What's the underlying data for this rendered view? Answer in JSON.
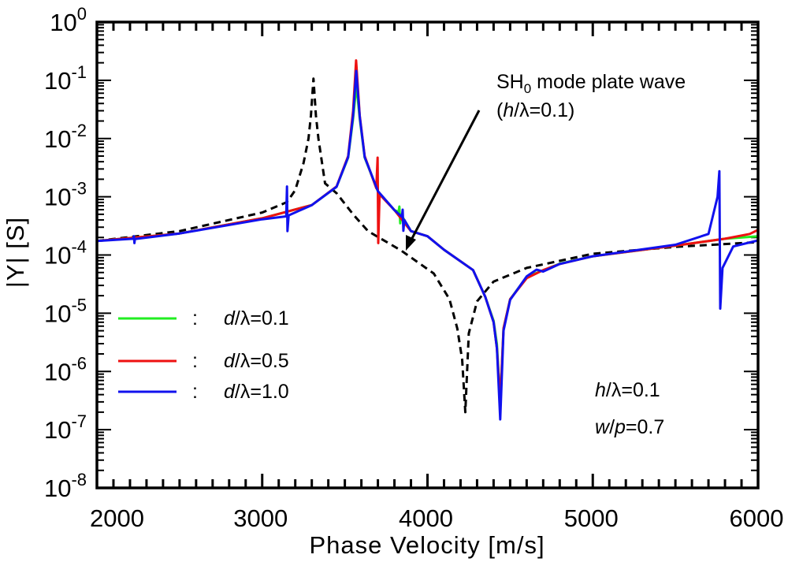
{
  "chart_data": {
    "type": "line",
    "title": "",
    "xlabel": "Phase Velocity [m/s]",
    "ylabel": "|Y| [S]",
    "xlim": [
      2000,
      6000
    ],
    "ylim": [
      1e-08,
      1
    ],
    "yscale": "log",
    "grid": false,
    "legend_placement": "left-middle",
    "x_ticks": [
      "2000",
      "3000",
      "4000",
      "5000",
      "6000"
    ],
    "y_ticks": [
      {
        "base": "10",
        "exp": "0"
      },
      {
        "base": "10",
        "exp": "-1"
      },
      {
        "base": "10",
        "exp": "-2"
      },
      {
        "base": "10",
        "exp": "-3"
      },
      {
        "base": "10",
        "exp": "-4"
      },
      {
        "base": "10",
        "exp": "-5"
      },
      {
        "base": "10",
        "exp": "-6"
      },
      {
        "base": "10",
        "exp": "-7"
      },
      {
        "base": "10",
        "exp": "-8"
      }
    ],
    "series": [
      {
        "id": "sh0",
        "color": "#000000",
        "dashed": true,
        "points": [
          [
            2000,
            0.000174
          ],
          [
            2500,
            0.000257
          ],
          [
            3000,
            0.000537
          ],
          [
            3150,
            0.00081
          ],
          [
            3200,
            0.0013
          ],
          [
            3250,
            0.0038
          ],
          [
            3280,
            0.01
          ],
          [
            3295,
            0.025
          ],
          [
            3310,
            0.107
          ],
          [
            3325,
            0.025
          ],
          [
            3340,
            0.01
          ],
          [
            3380,
            0.0017
          ],
          [
            3450,
            0.00115
          ],
          [
            3550,
            0.0005
          ],
          [
            3640,
            0.000257
          ],
          [
            3840,
            0.00012
          ],
          [
            4038,
            4.8e-05
          ],
          [
            4133,
            1.74e-05
          ],
          [
            4180,
            5.5e-06
          ],
          [
            4210,
            1.6e-06
          ],
          [
            4229,
            2e-07
          ],
          [
            4250,
            4.5e-06
          ],
          [
            4300,
            1.6e-05
          ],
          [
            4400,
            3.5e-05
          ],
          [
            4600,
            6e-05
          ],
          [
            5000,
            0.000105
          ],
          [
            5500,
            0.000138
          ],
          [
            6000,
            0.000166
          ]
        ]
      },
      {
        "id": "green",
        "name": "d/λ=0.1",
        "color": "#22ee22",
        "points": [
          [
            2000,
            0.000174
          ],
          [
            2500,
            0.000234
          ],
          [
            3000,
            0.000427
          ],
          [
            3300,
            0.00072
          ],
          [
            3450,
            0.00148
          ],
          [
            3520,
            0.0047
          ],
          [
            3550,
            0.022
          ],
          [
            3570,
            0.083
          ],
          [
            3590,
            0.022
          ],
          [
            3620,
            0.0047
          ],
          [
            3700,
            0.00123
          ],
          [
            3800,
            0.00059
          ],
          [
            3825,
            0.00055
          ],
          [
            3830,
            0.00068
          ],
          [
            3835,
            0.00035
          ],
          [
            3840,
            0.0005
          ],
          [
            3900,
            0.000257
          ],
          [
            4000,
            0.00021
          ],
          [
            4100,
            0.000123
          ],
          [
            4276,
            5.5e-05
          ],
          [
            4350,
            1.9e-05
          ],
          [
            4400,
            7.4e-06
          ],
          [
            4420,
            2.95e-06
          ],
          [
            4440,
            3e-07
          ],
          [
            4460,
            5.5e-06
          ],
          [
            4500,
            1.74e-05
          ],
          [
            4600,
            4.2e-05
          ],
          [
            4800,
            7.1e-05
          ],
          [
            5000,
            9.5e-05
          ],
          [
            5500,
            0.000145
          ],
          [
            5800,
            0.00019
          ],
          [
            6000,
            0.00021
          ]
        ]
      },
      {
        "id": "red",
        "name": "d/λ=0.5",
        "color": "#ee1111",
        "points": [
          [
            2000,
            0.000174
          ],
          [
            2500,
            0.000234
          ],
          [
            3000,
            0.000427
          ],
          [
            3300,
            0.00072
          ],
          [
            3450,
            0.0015
          ],
          [
            3520,
            0.005
          ],
          [
            3550,
            0.03
          ],
          [
            3568,
            0.22
          ],
          [
            3590,
            0.025
          ],
          [
            3620,
            0.005
          ],
          [
            3690,
            0.0014
          ],
          [
            3698,
            0.0047
          ],
          [
            3702,
            0.00016
          ],
          [
            3710,
            0.0011
          ],
          [
            3800,
            0.00059
          ],
          [
            3900,
            0.000257
          ],
          [
            4000,
            0.00021
          ],
          [
            4100,
            0.000123
          ],
          [
            4276,
            5.5e-05
          ],
          [
            4350,
            1.9e-05
          ],
          [
            4400,
            7e-06
          ],
          [
            4420,
            2.5e-06
          ],
          [
            4440,
            3e-07
          ],
          [
            4460,
            5.5e-06
          ],
          [
            4500,
            1.74e-05
          ],
          [
            4600,
            4e-05
          ],
          [
            4700,
            5.5e-05
          ],
          [
            4800,
            7e-05
          ],
          [
            5000,
            9.5e-05
          ],
          [
            5500,
            0.000145
          ],
          [
            5800,
            0.00019
          ],
          [
            5950,
            0.00023
          ],
          [
            6000,
            0.00027
          ]
        ]
      },
      {
        "id": "blue",
        "name": "d/λ=1.0",
        "color": "#1111ee",
        "points": [
          [
            2000,
            0.000174
          ],
          [
            2220,
            0.00019
          ],
          [
            2224,
            0.00021
          ],
          [
            2227,
            0.00016
          ],
          [
            2230,
            0.000188
          ],
          [
            2500,
            0.000234
          ],
          [
            3000,
            0.00041
          ],
          [
            3145,
            0.00046
          ],
          [
            3150,
            0.0015
          ],
          [
            3153,
            0.000257
          ],
          [
            3160,
            0.00048
          ],
          [
            3300,
            0.00072
          ],
          [
            3450,
            0.00148
          ],
          [
            3520,
            0.0048
          ],
          [
            3550,
            0.025
          ],
          [
            3569,
            0.145
          ],
          [
            3590,
            0.024
          ],
          [
            3620,
            0.0048
          ],
          [
            3700,
            0.00125
          ],
          [
            3800,
            0.00059
          ],
          [
            3845,
            0.00045
          ],
          [
            3850,
            0.0006
          ],
          [
            3854,
            0.00026
          ],
          [
            3860,
            0.0004
          ],
          [
            3900,
            0.000257
          ],
          [
            4000,
            0.00021
          ],
          [
            4100,
            0.000123
          ],
          [
            4276,
            5.5e-05
          ],
          [
            4350,
            1.9e-05
          ],
          [
            4400,
            7e-06
          ],
          [
            4420,
            2.5e-06
          ],
          [
            4440,
            1.5e-07
          ],
          [
            4460,
            5e-06
          ],
          [
            4500,
            1.7e-05
          ],
          [
            4600,
            4.3e-05
          ],
          [
            4660,
            5.6e-05
          ],
          [
            4700,
            5.2e-05
          ],
          [
            4800,
            7e-05
          ],
          [
            5000,
            9.5e-05
          ],
          [
            5500,
            0.00015
          ],
          [
            5700,
            0.00023
          ],
          [
            5755,
            0.001
          ],
          [
            5766,
            0.00275
          ],
          [
            5771,
            1.2e-05
          ],
          [
            5785,
            6e-05
          ],
          [
            5850,
            0.00014
          ],
          [
            6000,
            0.000178
          ]
        ]
      }
    ],
    "legend": [
      {
        "series": "green",
        "separator": ":",
        "italic": "d",
        "label": "/λ=0.1"
      },
      {
        "series": "red",
        "separator": ":",
        "italic": "d",
        "label": "/λ=0.5"
      },
      {
        "series": "blue",
        "separator": ":",
        "italic": "d",
        "label": "/λ=1.0"
      }
    ],
    "annotations": {
      "sh0_label": {
        "main": "SH",
        "sub": "0",
        "rest": " mode plate wave"
      },
      "sh0_param": {
        "open": "(",
        "italic": "h",
        "rest": "/λ=0.1)"
      },
      "arrow_from": [
        3840,
        0.00012
      ],
      "params": [
        {
          "italic": "h",
          "rest": "/λ=0.1"
        },
        {
          "italic": "w",
          "mid": "/",
          "italic2": "p",
          "rest": "=0.7"
        }
      ]
    }
  }
}
